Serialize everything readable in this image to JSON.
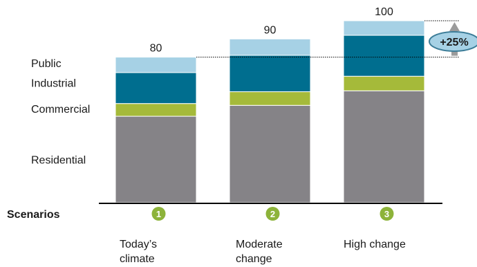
{
  "chart_data": {
    "type": "bar",
    "stacked": true,
    "categories": [
      "Today’s climate",
      "Moderate change",
      "High change"
    ],
    "category_lines": [
      [
        "Today’s",
        "climate"
      ],
      [
        "Moderate",
        "change"
      ],
      [
        "High change"
      ]
    ],
    "series": [
      {
        "name": "Residential",
        "color": "#858387",
        "values": [
          47.5,
          53.5,
          61.5
        ]
      },
      {
        "name": "Commercial",
        "color": "#a5ba3a",
        "values": [
          7,
          7.5,
          8
        ]
      },
      {
        "name": "Industrial",
        "color": "#006e8f",
        "values": [
          17,
          20,
          22.5
        ]
      },
      {
        "name": "Public",
        "color": "#a6d1e5",
        "values": [
          8.5,
          9,
          8
        ]
      }
    ],
    "totals": [
      80,
      90,
      100
    ],
    "total_labels": [
      "80",
      "90",
      "100"
    ],
    "ylim": [
      0,
      100
    ],
    "legend_placement": "left",
    "grid": false,
    "axis_label": "Scenarios",
    "scenario_numbers": [
      "1",
      "2",
      "3"
    ],
    "scenario_badge_color": "#8db33a",
    "annotation": {
      "text": "+25%",
      "fill": "#a6d1e5",
      "outline": "#3d7d98",
      "arrow_color": "#9b9b9b"
    }
  }
}
